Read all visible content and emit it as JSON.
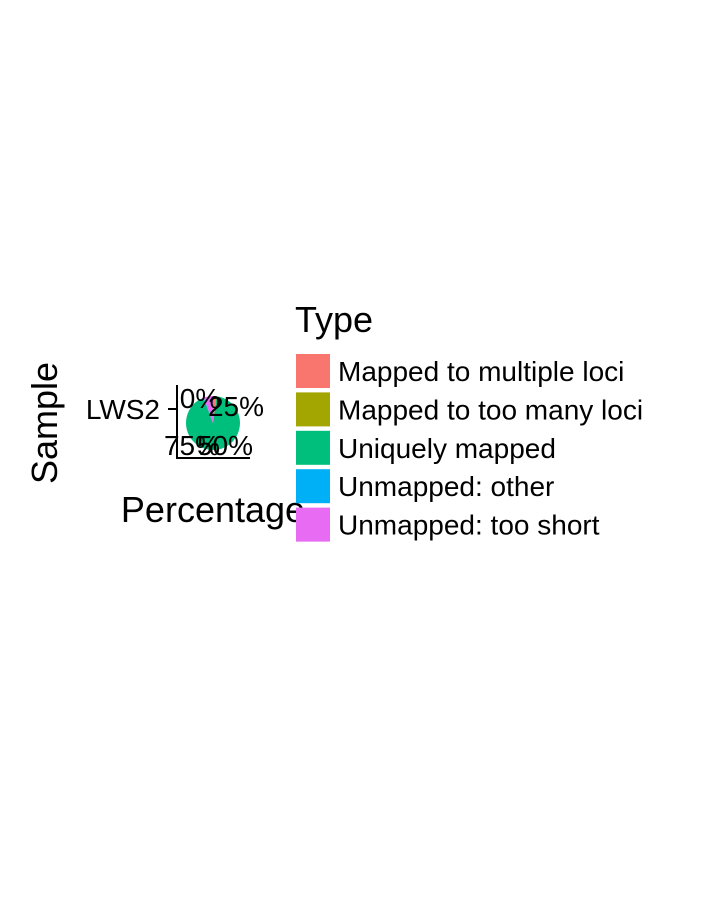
{
  "chart_data": {
    "type": "pie",
    "ylabel": "Sample",
    "xlabel": "Percentage",
    "sample": "LWS2",
    "angle_tick_labels": [
      "0%",
      "25%",
      "50%",
      "75%"
    ],
    "legend": {
      "title": "Type",
      "position": "right"
    },
    "slices": [
      {
        "name": "Mapped to multiple loci",
        "value": 2.0,
        "color": "#F8766D"
      },
      {
        "name": "Mapped to too many loci",
        "value": 0.2,
        "color": "#A3A500"
      },
      {
        "name": "Uniquely mapped",
        "value": 92.0,
        "color": "#00BF7D"
      },
      {
        "name": "Unmapped: other",
        "value": 0.3,
        "color": "#00B0F6"
      },
      {
        "name": "Unmapped: too short",
        "value": 5.5,
        "color": "#E76BF3"
      }
    ]
  }
}
